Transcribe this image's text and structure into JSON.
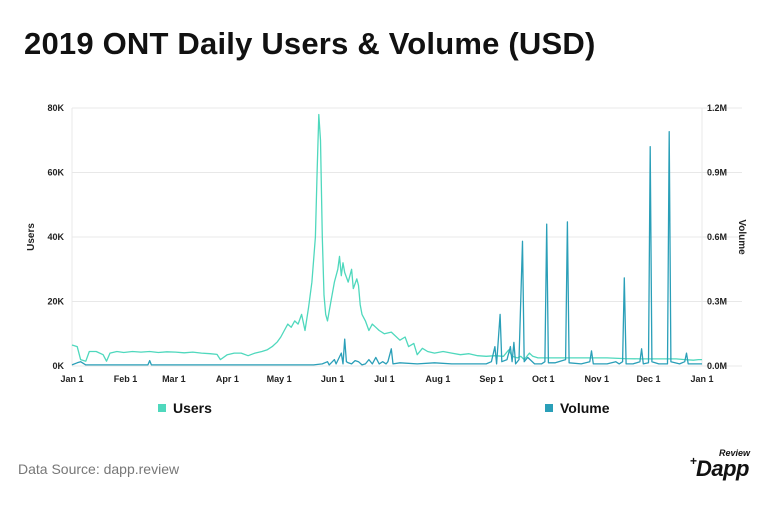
{
  "title": "2019 ONT Daily Users & Volume (USD)",
  "source": "Data Source: dapp.review",
  "logo": {
    "top": "Review",
    "main": "Dapp",
    "mark": "+"
  },
  "colors": {
    "users": "#4fd8bd",
    "volume": "#2a9fb8",
    "grid": "#e8e8e8"
  },
  "chart_data": {
    "type": "line",
    "title": "2019 ONT Daily Users & Volume (USD)",
    "xlabel": "",
    "ylabel": "Users",
    "y2label": "Volume",
    "x_range": [
      0,
      365
    ],
    "x_ticks": [
      {
        "label": "Jan 1",
        "day": 0
      },
      {
        "label": "Feb 1",
        "day": 31
      },
      {
        "label": "Mar 1",
        "day": 59
      },
      {
        "label": "Apr 1",
        "day": 90
      },
      {
        "label": "May 1",
        "day": 120
      },
      {
        "label": "Jun 1",
        "day": 151
      },
      {
        "label": "Jul 1",
        "day": 181
      },
      {
        "label": "Aug 1",
        "day": 212
      },
      {
        "label": "Sep 1",
        "day": 243
      },
      {
        "label": "Oct 1",
        "day": 273
      },
      {
        "label": "Nov 1",
        "day": 304
      },
      {
        "label": "Dec 1",
        "day": 334
      },
      {
        "label": "Jan 1",
        "day": 365
      }
    ],
    "ylim": [
      0,
      80000
    ],
    "y_ticks": [
      {
        "label": "0K",
        "value": 0
      },
      {
        "label": "20K",
        "value": 20000
      },
      {
        "label": "40K",
        "value": 40000
      },
      {
        "label": "60K",
        "value": 60000
      },
      {
        "label": "80K",
        "value": 80000
      }
    ],
    "y2lim": [
      0,
      1200000
    ],
    "y2_ticks": [
      {
        "label": "0.0M",
        "value": 0
      },
      {
        "label": "0.3M",
        "value": 300000
      },
      {
        "label": "0.6M",
        "value": 600000
      },
      {
        "label": "0.9M",
        "value": 900000
      },
      {
        "label": "1.2M",
        "value": 1200000
      }
    ],
    "legend": [
      {
        "name": "Users",
        "series": 0
      },
      {
        "name": "Volume",
        "series": 1
      }
    ],
    "series": [
      {
        "name": "Users",
        "axis": "left",
        "points": [
          [
            0,
            6500
          ],
          [
            3,
            6000
          ],
          [
            5,
            2000
          ],
          [
            8,
            1500
          ],
          [
            10,
            4500
          ],
          [
            14,
            4500
          ],
          [
            18,
            3500
          ],
          [
            20,
            1500
          ],
          [
            22,
            4000
          ],
          [
            26,
            4500
          ],
          [
            30,
            4200
          ],
          [
            35,
            4500
          ],
          [
            40,
            4300
          ],
          [
            45,
            4500
          ],
          [
            50,
            4200
          ],
          [
            55,
            4400
          ],
          [
            60,
            4300
          ],
          [
            65,
            4100
          ],
          [
            70,
            4300
          ],
          [
            75,
            4000
          ],
          [
            80,
            3800
          ],
          [
            84,
            3600
          ],
          [
            86,
            2000
          ],
          [
            90,
            3500
          ],
          [
            94,
            4000
          ],
          [
            98,
            4000
          ],
          [
            102,
            3200
          ],
          [
            106,
            4000
          ],
          [
            110,
            4500
          ],
          [
            113,
            5000
          ],
          [
            116,
            6000
          ],
          [
            119,
            7500
          ],
          [
            121,
            9000
          ],
          [
            123,
            11000
          ],
          [
            125,
            13000
          ],
          [
            127,
            12000
          ],
          [
            129,
            14000
          ],
          [
            131,
            13000
          ],
          [
            133,
            16000
          ],
          [
            135,
            11000
          ],
          [
            137,
            18000
          ],
          [
            139,
            26000
          ],
          [
            141,
            40000
          ],
          [
            142,
            60000
          ],
          [
            143,
            78000
          ],
          [
            144,
            70000
          ],
          [
            145,
            40000
          ],
          [
            146,
            22000
          ],
          [
            147,
            16000
          ],
          [
            148,
            14000
          ],
          [
            150,
            20000
          ],
          [
            152,
            26000
          ],
          [
            154,
            30000
          ],
          [
            155,
            34000
          ],
          [
            156,
            28000
          ],
          [
            157,
            32000
          ],
          [
            158,
            29000
          ],
          [
            160,
            26000
          ],
          [
            162,
            30000
          ],
          [
            163,
            24000
          ],
          [
            165,
            27000
          ],
          [
            166,
            25000
          ],
          [
            167,
            19000
          ],
          [
            168,
            16000
          ],
          [
            170,
            14000
          ],
          [
            172,
            11000
          ],
          [
            174,
            13000
          ],
          [
            176,
            12000
          ],
          [
            178,
            11000
          ],
          [
            181,
            10000
          ],
          [
            185,
            10500
          ],
          [
            190,
            8000
          ],
          [
            193,
            9000
          ],
          [
            195,
            6000
          ],
          [
            198,
            7000
          ],
          [
            200,
            3500
          ],
          [
            203,
            5500
          ],
          [
            206,
            4500
          ],
          [
            210,
            4000
          ],
          [
            215,
            4500
          ],
          [
            220,
            4000
          ],
          [
            225,
            3500
          ],
          [
            230,
            3800
          ],
          [
            235,
            3200
          ],
          [
            240,
            3000
          ],
          [
            245,
            3200
          ],
          [
            250,
            3000
          ],
          [
            253,
            5000
          ],
          [
            255,
            3000
          ],
          [
            258,
            2500
          ],
          [
            260,
            3000
          ],
          [
            262,
            2000
          ],
          [
            265,
            4000
          ],
          [
            267,
            3000
          ],
          [
            270,
            2500
          ],
          [
            275,
            2500
          ],
          [
            280,
            2500
          ],
          [
            290,
            2500
          ],
          [
            300,
            2500
          ],
          [
            310,
            2500
          ],
          [
            320,
            2300
          ],
          [
            330,
            2200
          ],
          [
            340,
            2200
          ],
          [
            350,
            2200
          ],
          [
            355,
            2000
          ],
          [
            360,
            1800
          ],
          [
            363,
            2000
          ],
          [
            365,
            2000
          ]
        ]
      },
      {
        "name": "Volume",
        "axis": "right",
        "points": [
          [
            0,
            5000
          ],
          [
            3,
            15000
          ],
          [
            5,
            20000
          ],
          [
            8,
            5000
          ],
          [
            30,
            5000
          ],
          [
            44,
            5000
          ],
          [
            45,
            25000
          ],
          [
            46,
            5000
          ],
          [
            80,
            5000
          ],
          [
            120,
            5000
          ],
          [
            140,
            5000
          ],
          [
            145,
            10000
          ],
          [
            148,
            20000
          ],
          [
            149,
            5000
          ],
          [
            152,
            30000
          ],
          [
            153,
            10000
          ],
          [
            156,
            60000
          ],
          [
            157,
            10000
          ],
          [
            158,
            125000
          ],
          [
            159,
            20000
          ],
          [
            160,
            15000
          ],
          [
            162,
            10000
          ],
          [
            164,
            25000
          ],
          [
            166,
            20000
          ],
          [
            168,
            5000
          ],
          [
            170,
            10000
          ],
          [
            172,
            30000
          ],
          [
            174,
            10000
          ],
          [
            176,
            40000
          ],
          [
            178,
            10000
          ],
          [
            180,
            20000
          ],
          [
            182,
            10000
          ],
          [
            183,
            20000
          ],
          [
            185,
            80000
          ],
          [
            186,
            10000
          ],
          [
            190,
            15000
          ],
          [
            200,
            10000
          ],
          [
            210,
            15000
          ],
          [
            220,
            10000
          ],
          [
            230,
            10000
          ],
          [
            240,
            10000
          ],
          [
            243,
            20000
          ],
          [
            245,
            90000
          ],
          [
            246,
            10000
          ],
          [
            248,
            240000
          ],
          [
            249,
            20000
          ],
          [
            252,
            30000
          ],
          [
            254,
            90000
          ],
          [
            255,
            20000
          ],
          [
            256,
            110000
          ],
          [
            257,
            10000
          ],
          [
            259,
            30000
          ],
          [
            261,
            580000
          ],
          [
            262,
            20000
          ],
          [
            264,
            40000
          ],
          [
            268,
            10000
          ],
          [
            272,
            10000
          ],
          [
            274,
            20000
          ],
          [
            275,
            660000
          ],
          [
            276,
            15000
          ],
          [
            280,
            15000
          ],
          [
            286,
            30000
          ],
          [
            287,
            670000
          ],
          [
            288,
            15000
          ],
          [
            295,
            10000
          ],
          [
            300,
            20000
          ],
          [
            301,
            70000
          ],
          [
            302,
            10000
          ],
          [
            310,
            10000
          ],
          [
            315,
            20000
          ],
          [
            317,
            10000
          ],
          [
            319,
            20000
          ],
          [
            320,
            410000
          ],
          [
            321,
            10000
          ],
          [
            325,
            10000
          ],
          [
            329,
            20000
          ],
          [
            330,
            80000
          ],
          [
            331,
            10000
          ],
          [
            334,
            15000
          ],
          [
            335,
            1020000
          ],
          [
            336,
            20000
          ],
          [
            340,
            10000
          ],
          [
            345,
            10000
          ],
          [
            346,
            1090000
          ],
          [
            347,
            20000
          ],
          [
            352,
            10000
          ],
          [
            355,
            20000
          ],
          [
            356,
            60000
          ],
          [
            357,
            10000
          ],
          [
            361,
            10000
          ],
          [
            365,
            10000
          ]
        ]
      }
    ]
  }
}
